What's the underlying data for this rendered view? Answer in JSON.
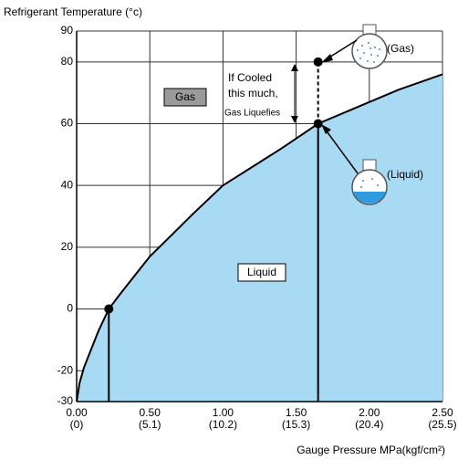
{
  "chart_data": {
    "type": "line",
    "y_label": "Refrigerant Temperature (°c)",
    "x_label": "Gauge Pressure MPa(kgf/cm²)",
    "xlim": [
      0,
      2.5
    ],
    "ylim": [
      -30,
      90
    ],
    "xticks": [
      {
        "value": 0,
        "label": "0.00"
      },
      {
        "value": 0.5,
        "label": "0.50"
      },
      {
        "value": 1,
        "label": "1.00"
      },
      {
        "value": 1.5,
        "label": "1.50"
      },
      {
        "value": 2,
        "label": "2.00"
      },
      {
        "value": 2.5,
        "label": "2.50"
      }
    ],
    "xtick_sublabels": [
      "(0)",
      "(5.1)",
      "(10.2)",
      "(15.3)",
      "(20.4)",
      "(25.5)"
    ],
    "yticks": [
      -30,
      -20,
      0,
      20,
      40,
      60,
      80,
      90
    ],
    "grid": true,
    "series": [
      {
        "color": "#000000",
        "fill": "#a9daf4",
        "x": [
          0,
          0.02,
          0.05,
          0.1,
          0.15,
          0.22,
          0.3,
          0.4,
          0.5,
          0.65,
          0.8,
          1.0,
          1.2,
          1.4,
          1.65,
          1.9,
          2.2,
          2.5
        ],
        "values": [
          -30,
          -24,
          -19,
          -13,
          -7,
          0,
          5,
          11,
          17,
          24,
          31,
          40,
          46,
          52,
          60,
          65,
          71,
          76
        ]
      }
    ],
    "points": {
      "color": "#000000",
      "x": [
        0.22,
        1.65,
        1.65
      ],
      "values": [
        0,
        60,
        80
      ]
    },
    "region_labels": {
      "gas": "Gas",
      "liquid": "Liquid"
    },
    "note": [
      "If Cooled",
      "this much,",
      "Gas Liquefies"
    ],
    "flask_labels": [
      "(Gas)",
      "(Liquid)"
    ]
  }
}
